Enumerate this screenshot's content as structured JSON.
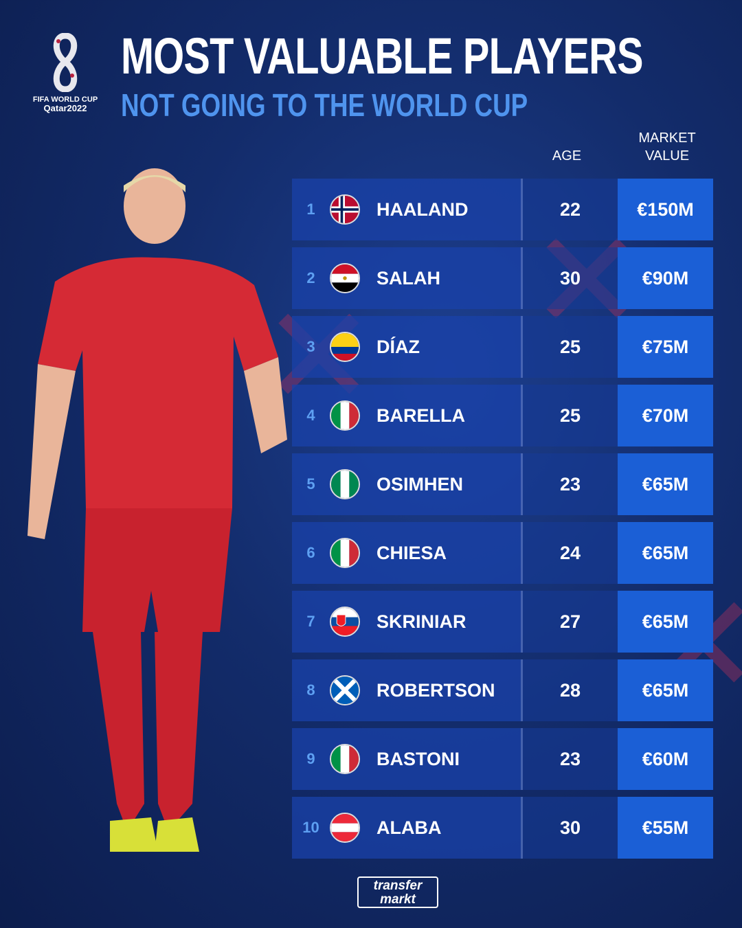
{
  "logo": {
    "line1": "FIFA WORLD CUP",
    "line2": "Qatar2022"
  },
  "title": "MOST VALUABLE PLAYERS",
  "subtitle": "NOT GOING TO THE WORLD CUP",
  "headers": {
    "age": "AGE",
    "market_value_line1": "MARKET",
    "market_value_line2": "VALUE"
  },
  "rows": [
    {
      "rank": "1",
      "flag": "norway",
      "name": "HAALAND",
      "age": "22",
      "value": "€150M"
    },
    {
      "rank": "2",
      "flag": "egypt",
      "name": "SALAH",
      "age": "30",
      "value": "€90M"
    },
    {
      "rank": "3",
      "flag": "colombia",
      "name": "DÍAZ",
      "age": "25",
      "value": "€75M"
    },
    {
      "rank": "4",
      "flag": "italy",
      "name": "BARELLA",
      "age": "25",
      "value": "€70M"
    },
    {
      "rank": "5",
      "flag": "nigeria",
      "name": "OSIMHEN",
      "age": "23",
      "value": "€65M"
    },
    {
      "rank": "6",
      "flag": "italy",
      "name": "CHIESA",
      "age": "24",
      "value": "€65M"
    },
    {
      "rank": "7",
      "flag": "slovakia",
      "name": "SKRINIAR",
      "age": "27",
      "value": "€65M"
    },
    {
      "rank": "8",
      "flag": "scotland",
      "name": "ROBERTSON",
      "age": "28",
      "value": "€65M"
    },
    {
      "rank": "9",
      "flag": "italy",
      "name": "BASTONI",
      "age": "23",
      "value": "€60M"
    },
    {
      "rank": "10",
      "flag": "austria",
      "name": "ALABA",
      "age": "30",
      "value": "€55M"
    }
  ],
  "footer_logo": {
    "line1": "transfer",
    "line2": "markt"
  },
  "colors": {
    "accent": "#4f94ee",
    "value_cell": "#1b5fd6",
    "background": "#132c6b"
  }
}
